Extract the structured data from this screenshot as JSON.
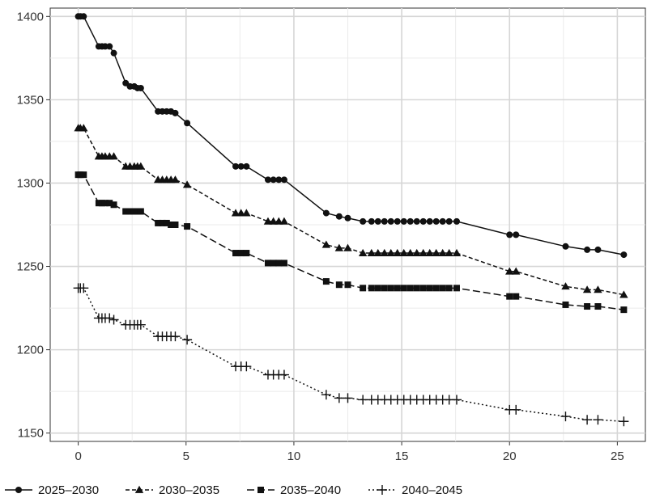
{
  "chart_data": {
    "type": "line",
    "title": "",
    "xlabel": "",
    "ylabel": "",
    "xlim": [
      -1.3,
      26.3
    ],
    "ylim": [
      1145,
      1405
    ],
    "x_ticks": [
      0,
      5,
      10,
      15,
      20,
      25
    ],
    "x_tick_labels": [
      "0",
      "5",
      "10",
      "15",
      "20",
      "25"
    ],
    "y_ticks": [
      1150,
      1200,
      1250,
      1300,
      1350,
      1400
    ],
    "y_tick_labels": [
      "1150",
      "1200",
      "1250",
      "1300",
      "1350",
      "1400"
    ],
    "grid": true,
    "legend_position": "bottom",
    "series": [
      {
        "name": "2025–2030",
        "marker": "circle",
        "dash": "solid",
        "x": [
          0,
          0.1,
          0.25,
          0.95,
          1.1,
          1.25,
          1.45,
          1.65,
          2.2,
          2.4,
          2.6,
          2.75,
          2.9,
          3.7,
          3.9,
          4.1,
          4.3,
          4.5,
          5.05,
          7.3,
          7.55,
          7.8,
          8.8,
          9.05,
          9.3,
          9.55,
          11.5,
          12.1,
          12.5,
          13.2,
          13.6,
          13.9,
          14.2,
          14.5,
          14.8,
          15.1,
          15.4,
          15.7,
          16.0,
          16.3,
          16.6,
          16.9,
          17.2,
          17.55,
          20.0,
          20.3,
          22.6,
          23.6,
          24.1,
          25.3
        ],
        "y": [
          1400,
          1400,
          1400,
          1382,
          1382,
          1382,
          1382,
          1378,
          1360,
          1358,
          1358,
          1357,
          1357,
          1343,
          1343,
          1343,
          1343,
          1342,
          1336,
          1310,
          1310,
          1310,
          1302,
          1302,
          1302,
          1302,
          1282,
          1280,
          1279,
          1277,
          1277,
          1277,
          1277,
          1277,
          1277,
          1277,
          1277,
          1277,
          1277,
          1277,
          1277,
          1277,
          1277,
          1277,
          1269,
          1269,
          1262,
          1260,
          1260,
          1257
        ]
      },
      {
        "name": "2030–2035",
        "marker": "triangle",
        "dash": "dashed",
        "x": [
          0,
          0.1,
          0.25,
          0.95,
          1.1,
          1.25,
          1.45,
          1.65,
          2.2,
          2.4,
          2.6,
          2.75,
          2.9,
          3.7,
          3.9,
          4.1,
          4.3,
          4.5,
          5.05,
          7.3,
          7.55,
          7.8,
          8.8,
          9.05,
          9.3,
          9.55,
          11.5,
          12.1,
          12.5,
          13.2,
          13.6,
          13.9,
          14.2,
          14.5,
          14.8,
          15.1,
          15.4,
          15.7,
          16.0,
          16.3,
          16.6,
          16.9,
          17.2,
          17.55,
          20.0,
          20.3,
          22.6,
          23.6,
          24.1,
          25.3
        ],
        "y": [
          1333,
          1333,
          1333,
          1316,
          1316,
          1316,
          1316,
          1316,
          1310,
          1310,
          1310,
          1310,
          1310,
          1302,
          1302,
          1302,
          1302,
          1302,
          1299,
          1282,
          1282,
          1282,
          1277,
          1277,
          1277,
          1277,
          1263,
          1261,
          1261,
          1258,
          1258,
          1258,
          1258,
          1258,
          1258,
          1258,
          1258,
          1258,
          1258,
          1258,
          1258,
          1258,
          1258,
          1258,
          1247,
          1247,
          1238,
          1236,
          1236,
          1233
        ]
      },
      {
        "name": "2035–2040",
        "marker": "square",
        "dash": "longdash",
        "x": [
          0,
          0.1,
          0.25,
          0.95,
          1.1,
          1.25,
          1.45,
          1.65,
          2.2,
          2.4,
          2.6,
          2.75,
          2.9,
          3.7,
          3.9,
          4.1,
          4.3,
          4.5,
          5.05,
          7.3,
          7.55,
          7.8,
          8.8,
          9.05,
          9.3,
          9.55,
          11.5,
          12.1,
          12.5,
          13.2,
          13.6,
          13.9,
          14.2,
          14.5,
          14.8,
          15.1,
          15.4,
          15.7,
          16.0,
          16.3,
          16.6,
          16.9,
          17.2,
          17.55,
          20.0,
          20.3,
          22.6,
          23.6,
          24.1,
          25.3
        ],
        "y": [
          1305,
          1305,
          1305,
          1288,
          1288,
          1288,
          1288,
          1287,
          1283,
          1283,
          1283,
          1283,
          1283,
          1276,
          1276,
          1276,
          1275,
          1275,
          1274,
          1258,
          1258,
          1258,
          1252,
          1252,
          1252,
          1252,
          1241,
          1239,
          1239,
          1237,
          1237,
          1237,
          1237,
          1237,
          1237,
          1237,
          1237,
          1237,
          1237,
          1237,
          1237,
          1237,
          1237,
          1237,
          1232,
          1232,
          1227,
          1226,
          1226,
          1224
        ]
      },
      {
        "name": "2040–2045",
        "marker": "cross",
        "dash": "dotted",
        "x": [
          0,
          0.1,
          0.25,
          0.95,
          1.1,
          1.25,
          1.45,
          1.65,
          2.2,
          2.4,
          2.6,
          2.75,
          2.9,
          3.7,
          3.9,
          4.1,
          4.3,
          4.5,
          5.05,
          7.3,
          7.55,
          7.8,
          8.8,
          9.05,
          9.3,
          9.55,
          11.5,
          12.1,
          12.5,
          13.2,
          13.6,
          13.9,
          14.2,
          14.5,
          14.8,
          15.1,
          15.4,
          15.7,
          16.0,
          16.3,
          16.6,
          16.9,
          17.2,
          17.55,
          20.0,
          20.3,
          22.6,
          23.6,
          24.1,
          25.3
        ],
        "y": [
          1237,
          1237,
          1237,
          1219,
          1219,
          1219,
          1219,
          1218,
          1215,
          1215,
          1215,
          1215,
          1215,
          1208,
          1208,
          1208,
          1208,
          1208,
          1206,
          1190,
          1190,
          1190,
          1185,
          1185,
          1185,
          1185,
          1173,
          1171,
          1171,
          1170,
          1170,
          1170,
          1170,
          1170,
          1170,
          1170,
          1170,
          1170,
          1170,
          1170,
          1170,
          1170,
          1170,
          1170,
          1164,
          1164,
          1160,
          1158,
          1158,
          1157
        ]
      }
    ]
  }
}
